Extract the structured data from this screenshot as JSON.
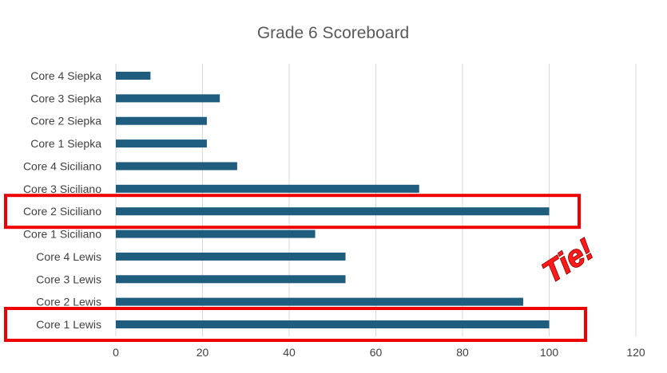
{
  "chart_data": {
    "type": "bar",
    "orientation": "horizontal",
    "title": "Grade 6 Scoreboard",
    "xlabel": "",
    "ylabel": "",
    "categories": [
      "Core 4 Siepka",
      "Core 3 Siepka",
      "Core 2 Siepka",
      "Core 1 Siepka",
      "Core 4 Siciliano",
      "Core 3 Siciliano",
      "Core 2 Siciliano",
      "Core 1 Siciliano",
      "Core 4 Lewis",
      "Core 3 Lewis",
      "Core 2 Lewis",
      "Core 1 Lewis"
    ],
    "values": [
      8,
      24,
      21,
      21,
      28,
      70,
      100,
      46,
      53,
      53,
      94,
      100
    ],
    "xlim": [
      0,
      120
    ],
    "ticks": [
      "0",
      "20",
      "40",
      "60",
      "80",
      "100",
      "120"
    ],
    "grid": "vertical",
    "legend": "none",
    "bar_color": "#1f5d7e",
    "highlighted": [
      "Core 2 Siciliano",
      "Core 1 Lewis"
    ],
    "highlight_color": "#ee0000",
    "annotation": "Tie!"
  }
}
